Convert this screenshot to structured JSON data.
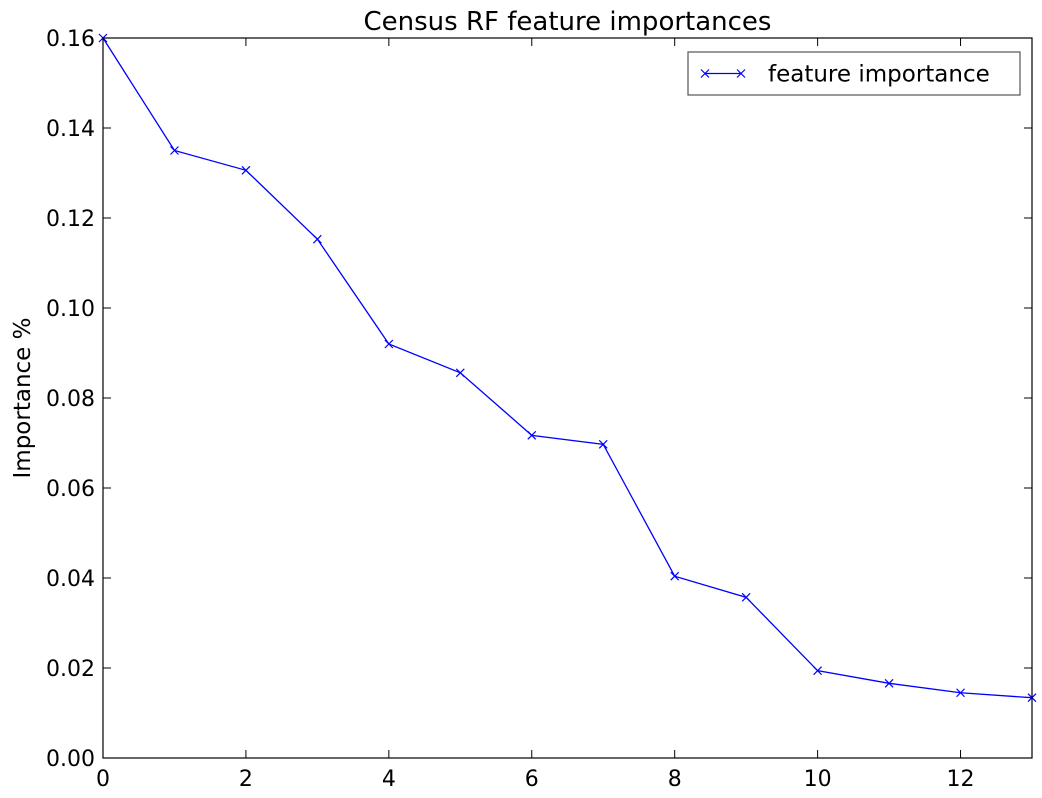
{
  "chart_data": {
    "type": "line",
    "title": "Census RF feature importances",
    "xlabel": "",
    "ylabel": "Importance %",
    "xlim": [
      0,
      13
    ],
    "ylim": [
      0.0,
      0.16
    ],
    "x_ticks": [
      "0",
      "2",
      "4",
      "6",
      "8",
      "10",
      "12"
    ],
    "y_ticks": [
      "0.00",
      "0.02",
      "0.04",
      "0.06",
      "0.08",
      "0.10",
      "0.12",
      "0.14",
      "0.16"
    ],
    "grid": false,
    "legend_position": "top-right",
    "series": [
      {
        "name": "feature importance",
        "color": "#0000ff",
        "marker": "x",
        "x": [
          0,
          1,
          2,
          3,
          4,
          5,
          6,
          7,
          8,
          9,
          10,
          11,
          12,
          13
        ],
        "values": [
          0.16,
          0.135,
          0.1306,
          0.1153,
          0.092,
          0.0856,
          0.0717,
          0.0697,
          0.0404,
          0.0357,
          0.0194,
          0.0166,
          0.0145,
          0.0134
        ]
      }
    ]
  }
}
